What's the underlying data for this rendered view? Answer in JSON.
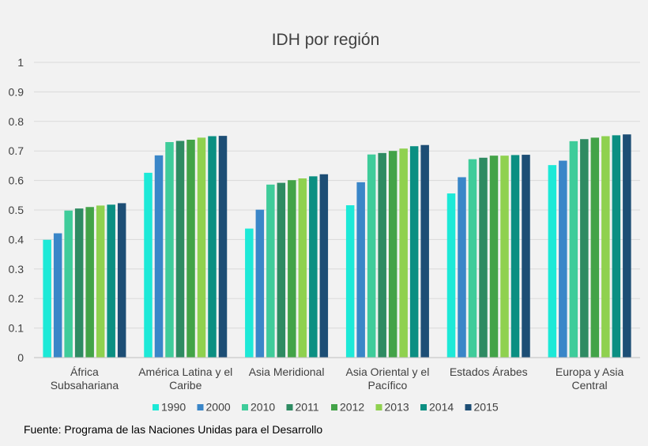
{
  "chart_data": {
    "type": "bar",
    "title": "IDH por región",
    "xlabel": "",
    "ylabel": "",
    "ylim": [
      0,
      1
    ],
    "yticks": [
      "0",
      "0.1",
      "0.2",
      "0.3",
      "0.4",
      "0.5",
      "0.6",
      "0.7",
      "0.8",
      "0.9",
      "1"
    ],
    "grid": true,
    "legend_position": "bottom",
    "categories": [
      [
        "África",
        "Subsahariana"
      ],
      [
        "América Latina y el",
        "Caribe"
      ],
      [
        "Asia Meridional"
      ],
      [
        "Asia Oriental y el",
        "Pacífico"
      ],
      [
        "Estados Árabes"
      ],
      [
        "Europa y Asia",
        "Central"
      ]
    ],
    "series": [
      {
        "name": "1990",
        "color": "#1de9d7",
        "values": [
          0.399,
          0.626,
          0.437,
          0.516,
          0.556,
          0.652
        ]
      },
      {
        "name": "2000",
        "color": "#3a86c8",
        "values": [
          0.421,
          0.685,
          0.501,
          0.594,
          0.611,
          0.667
        ]
      },
      {
        "name": "2010",
        "color": "#3fcc9a",
        "values": [
          0.498,
          0.73,
          0.586,
          0.688,
          0.672,
          0.733
        ]
      },
      {
        "name": "2011",
        "color": "#2e8b62",
        "values": [
          0.505,
          0.734,
          0.592,
          0.693,
          0.677,
          0.74
        ]
      },
      {
        "name": "2012",
        "color": "#43a348",
        "values": [
          0.51,
          0.738,
          0.601,
          0.7,
          0.684,
          0.745
        ]
      },
      {
        "name": "2013",
        "color": "#8fd14f",
        "values": [
          0.515,
          0.745,
          0.607,
          0.708,
          0.684,
          0.75
        ]
      },
      {
        "name": "2014",
        "color": "#0b8f82",
        "values": [
          0.518,
          0.75,
          0.614,
          0.716,
          0.686,
          0.753
        ]
      },
      {
        "name": "2015",
        "color": "#1d4e75",
        "values": [
          0.523,
          0.751,
          0.621,
          0.72,
          0.687,
          0.756
        ]
      }
    ]
  },
  "source": "Fuente: Programa de las Naciones Unidas para el Desarrollo"
}
